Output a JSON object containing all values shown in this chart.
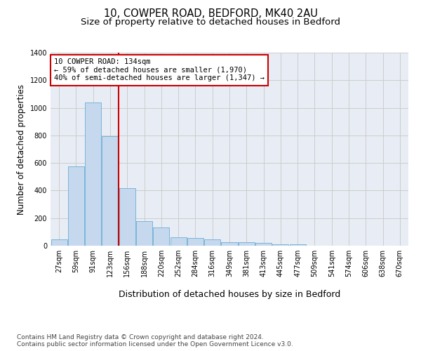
{
  "title_line1": "10, COWPER ROAD, BEDFORD, MK40 2AU",
  "title_line2": "Size of property relative to detached houses in Bedford",
  "xlabel": "Distribution of detached houses by size in Bedford",
  "ylabel": "Number of detached properties",
  "categories": [
    "27sqm",
    "59sqm",
    "91sqm",
    "123sqm",
    "156sqm",
    "188sqm",
    "220sqm",
    "252sqm",
    "284sqm",
    "316sqm",
    "349sqm",
    "381sqm",
    "413sqm",
    "445sqm",
    "477sqm",
    "509sqm",
    "541sqm",
    "574sqm",
    "606sqm",
    "638sqm",
    "670sqm"
  ],
  "values": [
    45,
    575,
    1040,
    795,
    420,
    180,
    130,
    60,
    55,
    47,
    28,
    27,
    18,
    12,
    8,
    0,
    0,
    0,
    0,
    0,
    0
  ],
  "bar_color": "#c5d8ed",
  "bar_edge_color": "#6baed6",
  "vline_color": "#cc0000",
  "vline_xindex": 3.5,
  "annotation_text": "10 COWPER ROAD: 134sqm\n← 59% of detached houses are smaller (1,970)\n40% of semi-detached houses are larger (1,347) →",
  "annotation_box_color": "#ffffff",
  "annotation_box_edge": "#cc0000",
  "ylim": [
    0,
    1400
  ],
  "yticks": [
    0,
    200,
    400,
    600,
    800,
    1000,
    1200,
    1400
  ],
  "grid_color": "#cccccc",
  "background_color": "#e8edf5",
  "footnote": "Contains HM Land Registry data © Crown copyright and database right 2024.\nContains public sector information licensed under the Open Government Licence v3.0.",
  "title_fontsize": 10.5,
  "subtitle_fontsize": 9.5,
  "xlabel_fontsize": 9,
  "ylabel_fontsize": 8.5,
  "tick_fontsize": 7,
  "annotation_fontsize": 7.5,
  "footnote_fontsize": 6.5
}
